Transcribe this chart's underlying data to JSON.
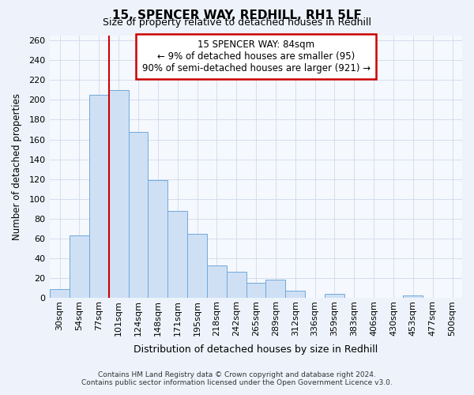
{
  "title1": "15, SPENCER WAY, REDHILL, RH1 5LF",
  "title2": "Size of property relative to detached houses in Redhill",
  "xlabel": "Distribution of detached houses by size in Redhill",
  "ylabel": "Number of detached properties",
  "bar_labels": [
    "30sqm",
    "54sqm",
    "77sqm",
    "101sqm",
    "124sqm",
    "148sqm",
    "171sqm",
    "195sqm",
    "218sqm",
    "242sqm",
    "265sqm",
    "289sqm",
    "312sqm",
    "336sqm",
    "359sqm",
    "383sqm",
    "406sqm",
    "430sqm",
    "453sqm",
    "477sqm",
    "500sqm"
  ],
  "bar_values": [
    9,
    63,
    205,
    210,
    168,
    119,
    88,
    65,
    33,
    26,
    15,
    18,
    7,
    0,
    4,
    0,
    0,
    0,
    2,
    0,
    0
  ],
  "bar_color": "#cfe0f5",
  "bar_edge_color": "#6fa8dc",
  "vline_color": "#cc0000",
  "vline_index": 2,
  "ylim_max": 265,
  "yticks": [
    0,
    20,
    40,
    60,
    80,
    100,
    120,
    140,
    160,
    180,
    200,
    220,
    240,
    260
  ],
  "annotation_title": "15 SPENCER WAY: 84sqm",
  "annotation_line1": "← 9% of detached houses are smaller (95)",
  "annotation_line2": "90% of semi-detached houses are larger (921) →",
  "footnote1": "Contains HM Land Registry data © Crown copyright and database right 2024.",
  "footnote2": "Contains public sector information licensed under the Open Government Licence v3.0.",
  "bg_color": "#eef3fb",
  "plot_bg_color": "#f5f8fd",
  "grid_color": "#d0daea"
}
